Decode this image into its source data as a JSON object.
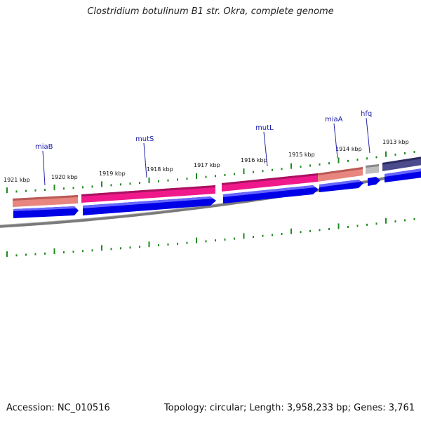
{
  "title": "Clostridium botulinum B1 str. Okra, complete genome",
  "footer": {
    "accession": "Accession: NC_010516",
    "summary": "Topology: circular; Length: 3,958,233 bp; Genes: 3,761"
  },
  "scale_labels": [
    "1921 kbp",
    "1920 kbp",
    "1919 kbp",
    "1918 kbp",
    "1917 kbp",
    "1916 kbp",
    "1915 kbp",
    "1914 kbp",
    "1913 kbp"
  ],
  "gene_labels": [
    "miaB",
    "mutS",
    "mutL",
    "miaA",
    "hfq"
  ],
  "colors": {
    "backbone": "#808080",
    "tick": "#1f8a1f",
    "cds_blue": "#0000e6",
    "salmon": "#e8857f",
    "pink": "#f0198c",
    "grey": "#b8b8b8",
    "navy": "#4a4a8c",
    "gene_label": "#1a1aa8"
  }
}
